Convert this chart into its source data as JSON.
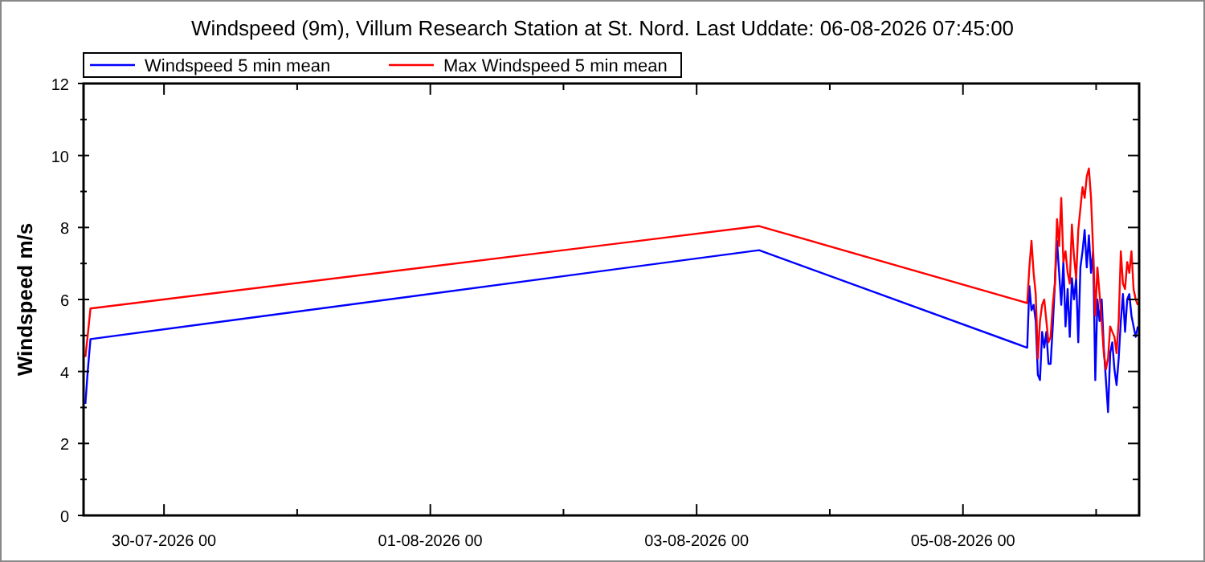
{
  "chart_data": {
    "type": "line",
    "title": "Windspeed (9m), Villum Research Station at St. Nord. Last Uddate: 06-08-2026 07:45:00",
    "ylabel": "Windspeed m/s",
    "x": [
      "2026-07-29T09:50",
      "2026-07-29T10:15",
      "2026-07-29T10:45",
      "2026-08-03T11:15",
      "2026-08-05T11:35",
      "2026-08-05T11:58",
      "2026-08-05T12:21",
      "2026-08-05T12:44",
      "2026-08-05T13:07",
      "2026-08-05T13:30",
      "2026-08-05T13:53",
      "2026-08-05T14:16",
      "2026-08-05T14:39",
      "2026-08-05T15:02",
      "2026-08-05T15:25",
      "2026-08-05T15:48",
      "2026-08-05T16:11",
      "2026-08-05T16:34",
      "2026-08-05T16:57",
      "2026-08-05T17:20",
      "2026-08-05T17:43",
      "2026-08-05T18:06",
      "2026-08-05T18:29",
      "2026-08-05T18:52",
      "2026-08-05T19:15",
      "2026-08-05T19:38",
      "2026-08-05T20:01",
      "2026-08-05T20:24",
      "2026-08-05T20:47",
      "2026-08-05T21:10",
      "2026-08-05T21:33",
      "2026-08-05T21:56",
      "2026-08-05T22:19",
      "2026-08-05T22:42",
      "2026-08-05T23:05",
      "2026-08-05T23:28",
      "2026-08-05T23:51",
      "2026-08-06T00:14",
      "2026-08-06T00:37",
      "2026-08-06T01:00",
      "2026-08-06T01:23",
      "2026-08-06T01:46",
      "2026-08-06T02:09",
      "2026-08-06T02:32",
      "2026-08-06T02:55",
      "2026-08-06T03:18",
      "2026-08-06T03:41",
      "2026-08-06T04:04",
      "2026-08-06T04:27",
      "2026-08-06T04:50",
      "2026-08-06T05:13",
      "2026-08-06T05:36",
      "2026-08-06T05:59",
      "2026-08-06T06:22",
      "2026-08-06T06:45",
      "2026-08-06T07:08",
      "2026-08-06T07:31"
    ],
    "series": [
      {
        "name": "Windspeed 5 min mean",
        "color": "#0000ff",
        "values": [
          3.1,
          4.0,
          4.9,
          7.37,
          4.66,
          6.37,
          5.7,
          5.85,
          5.4,
          3.91,
          3.76,
          5.1,
          4.66,
          5.1,
          4.21,
          4.21,
          5.25,
          6.44,
          7.63,
          6.74,
          5.85,
          7.04,
          5.25,
          6.29,
          4.96,
          6.59,
          6.0,
          6.59,
          4.81,
          6.89,
          7.34,
          7.93,
          6.89,
          7.78,
          6.74,
          7.34,
          3.76,
          6.0,
          5.4,
          6.0,
          4.66,
          3.76,
          2.87,
          4.51,
          4.81,
          4.06,
          3.62,
          4.36,
          5.4,
          6.15,
          5.1,
          6.0,
          6.15,
          5.55,
          5.25,
          4.96,
          5.25
        ]
      },
      {
        "name": "Max Windspeed 5 min mean",
        "color": "#ff0000",
        "values": [
          4.4,
          5.0,
          5.75,
          8.04,
          5.9,
          6.89,
          7.63,
          6.74,
          6.15,
          4.36,
          5.4,
          5.85,
          6.0,
          5.4,
          4.81,
          4.96,
          5.85,
          6.44,
          8.23,
          7.48,
          8.82,
          7.04,
          7.34,
          6.74,
          6.44,
          8.08,
          7.19,
          6.59,
          7.93,
          8.53,
          9.12,
          8.82,
          9.42,
          9.64,
          8.82,
          7.34,
          5.55,
          6.89,
          6.15,
          5.4,
          4.51,
          4.06,
          4.36,
          5.25,
          5.1,
          4.96,
          4.51,
          5.4,
          7.34,
          6.44,
          6.29,
          7.04,
          6.74,
          7.34,
          6.29,
          6.0,
          5.85
        ]
      }
    ],
    "xlim": [
      "2026-07-29T09:30",
      "2026-08-06T07:45"
    ],
    "xticks": [
      {
        "value": "2026-07-30",
        "label": "30-07-2026 00"
      },
      {
        "value": "2026-07-31",
        "label": null
      },
      {
        "value": "2026-08-01",
        "label": "01-08-2026 00"
      },
      {
        "value": "2026-08-02",
        "label": null
      },
      {
        "value": "2026-08-03",
        "label": "03-08-2026 00"
      },
      {
        "value": "2026-08-04",
        "label": null
      },
      {
        "value": "2026-08-05",
        "label": "05-08-2026 00"
      },
      {
        "value": "2026-08-06",
        "label": null
      }
    ],
    "ylim": [
      0,
      12
    ],
    "yticks": [
      0,
      {
        "value": 1,
        "label": null
      },
      2,
      {
        "value": 3,
        "label": null
      },
      4,
      {
        "value": 5,
        "label": null
      },
      6,
      {
        "value": 7,
        "label": null
      },
      8,
      {
        "value": 9,
        "label": null
      },
      10,
      {
        "value": 11,
        "label": null
      },
      12
    ],
    "legend": "top left",
    "grid": false
  }
}
